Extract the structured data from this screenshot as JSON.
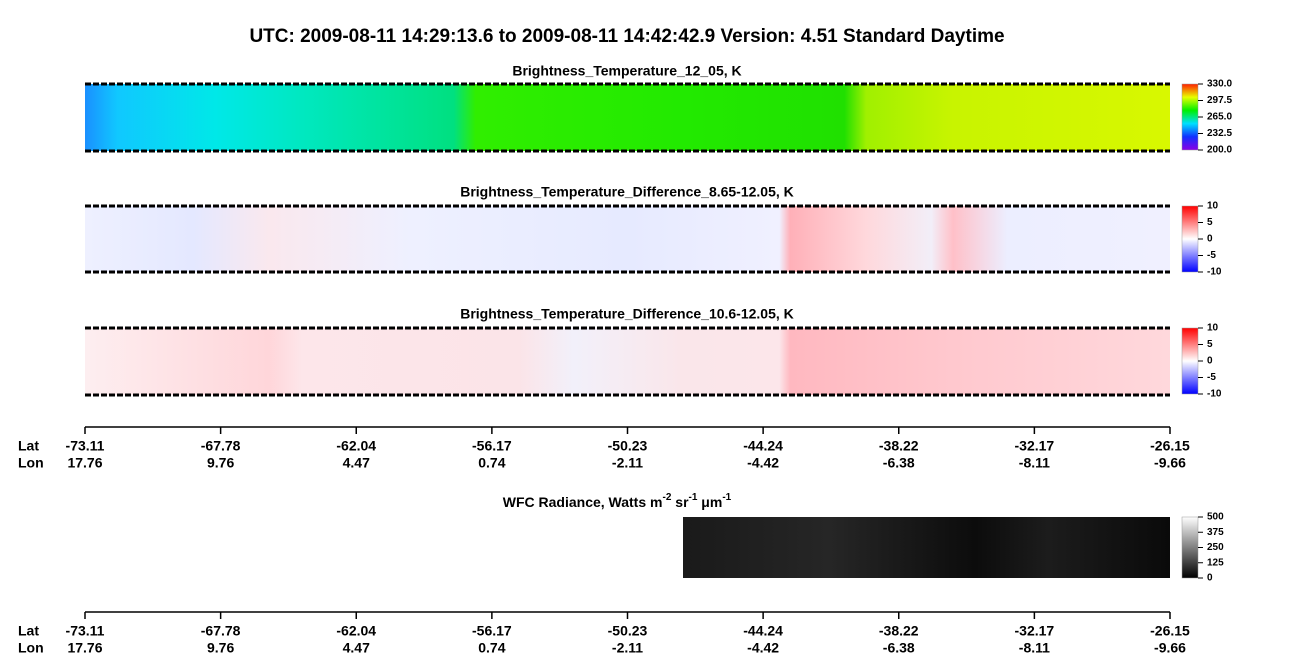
{
  "header": {
    "title": "UTC:  2009-08-11   14:29:13.6  to  2009-08-11   14:42:42.9    Version: 4.51  Standard Daytime"
  },
  "panels": [
    {
      "title": "Brightness_Temperature_12_05, K",
      "colormap": [
        "#8a00e6",
        "#1030ff",
        "#00e0ff",
        "#00f000",
        "#e8ff00",
        "#ff2000"
      ],
      "ticks": [
        {
          "value": 330,
          "label": "330.0"
        },
        {
          "value": 297.5,
          "label": "297.5"
        },
        {
          "value": 265,
          "label": "265.0"
        },
        {
          "value": 232.5,
          "label": "232.5"
        },
        {
          "value": 200,
          "label": "200.0"
        }
      ],
      "lim": [
        200,
        330
      ]
    },
    {
      "title": "Brightness_Temperature_Difference_8.65-12.05, K",
      "colormap": [
        "#0000ff",
        "#8080ff",
        "#ffffff",
        "#ff8080",
        "#ff0000"
      ],
      "ticks": [
        10,
        5,
        0,
        -5,
        -10
      ],
      "lim": [
        -10,
        10
      ]
    },
    {
      "title": "Brightness_Temperature_Difference_10.6-12.05, K",
      "colormap": [
        "#0000ff",
        "#8080ff",
        "#ffffff",
        "#ff8080",
        "#ff0000"
      ],
      "ticks": [
        10,
        5,
        0,
        -5,
        -10
      ],
      "lim": [
        -10,
        10
      ]
    },
    {
      "title_parts": [
        "WFC Radiance, Watts m",
        "-2",
        " sr",
        "-1",
        " μm",
        "-1"
      ],
      "colormap": [
        "#000000",
        "#ffffff"
      ],
      "ticks": [
        500,
        375,
        250,
        125,
        0
      ],
      "lim": [
        0,
        500
      ]
    }
  ],
  "axis": {
    "lat_label": "Lat",
    "lon_label": "Lon",
    "lat": [
      -73.11,
      -67.78,
      -62.04,
      -56.17,
      -50.23,
      -44.24,
      -38.22,
      -32.17,
      -26.15
    ],
    "lon": [
      17.76,
      9.76,
      4.47,
      0.74,
      -2.11,
      -4.42,
      -6.38,
      -8.11,
      -9.66
    ]
  }
}
